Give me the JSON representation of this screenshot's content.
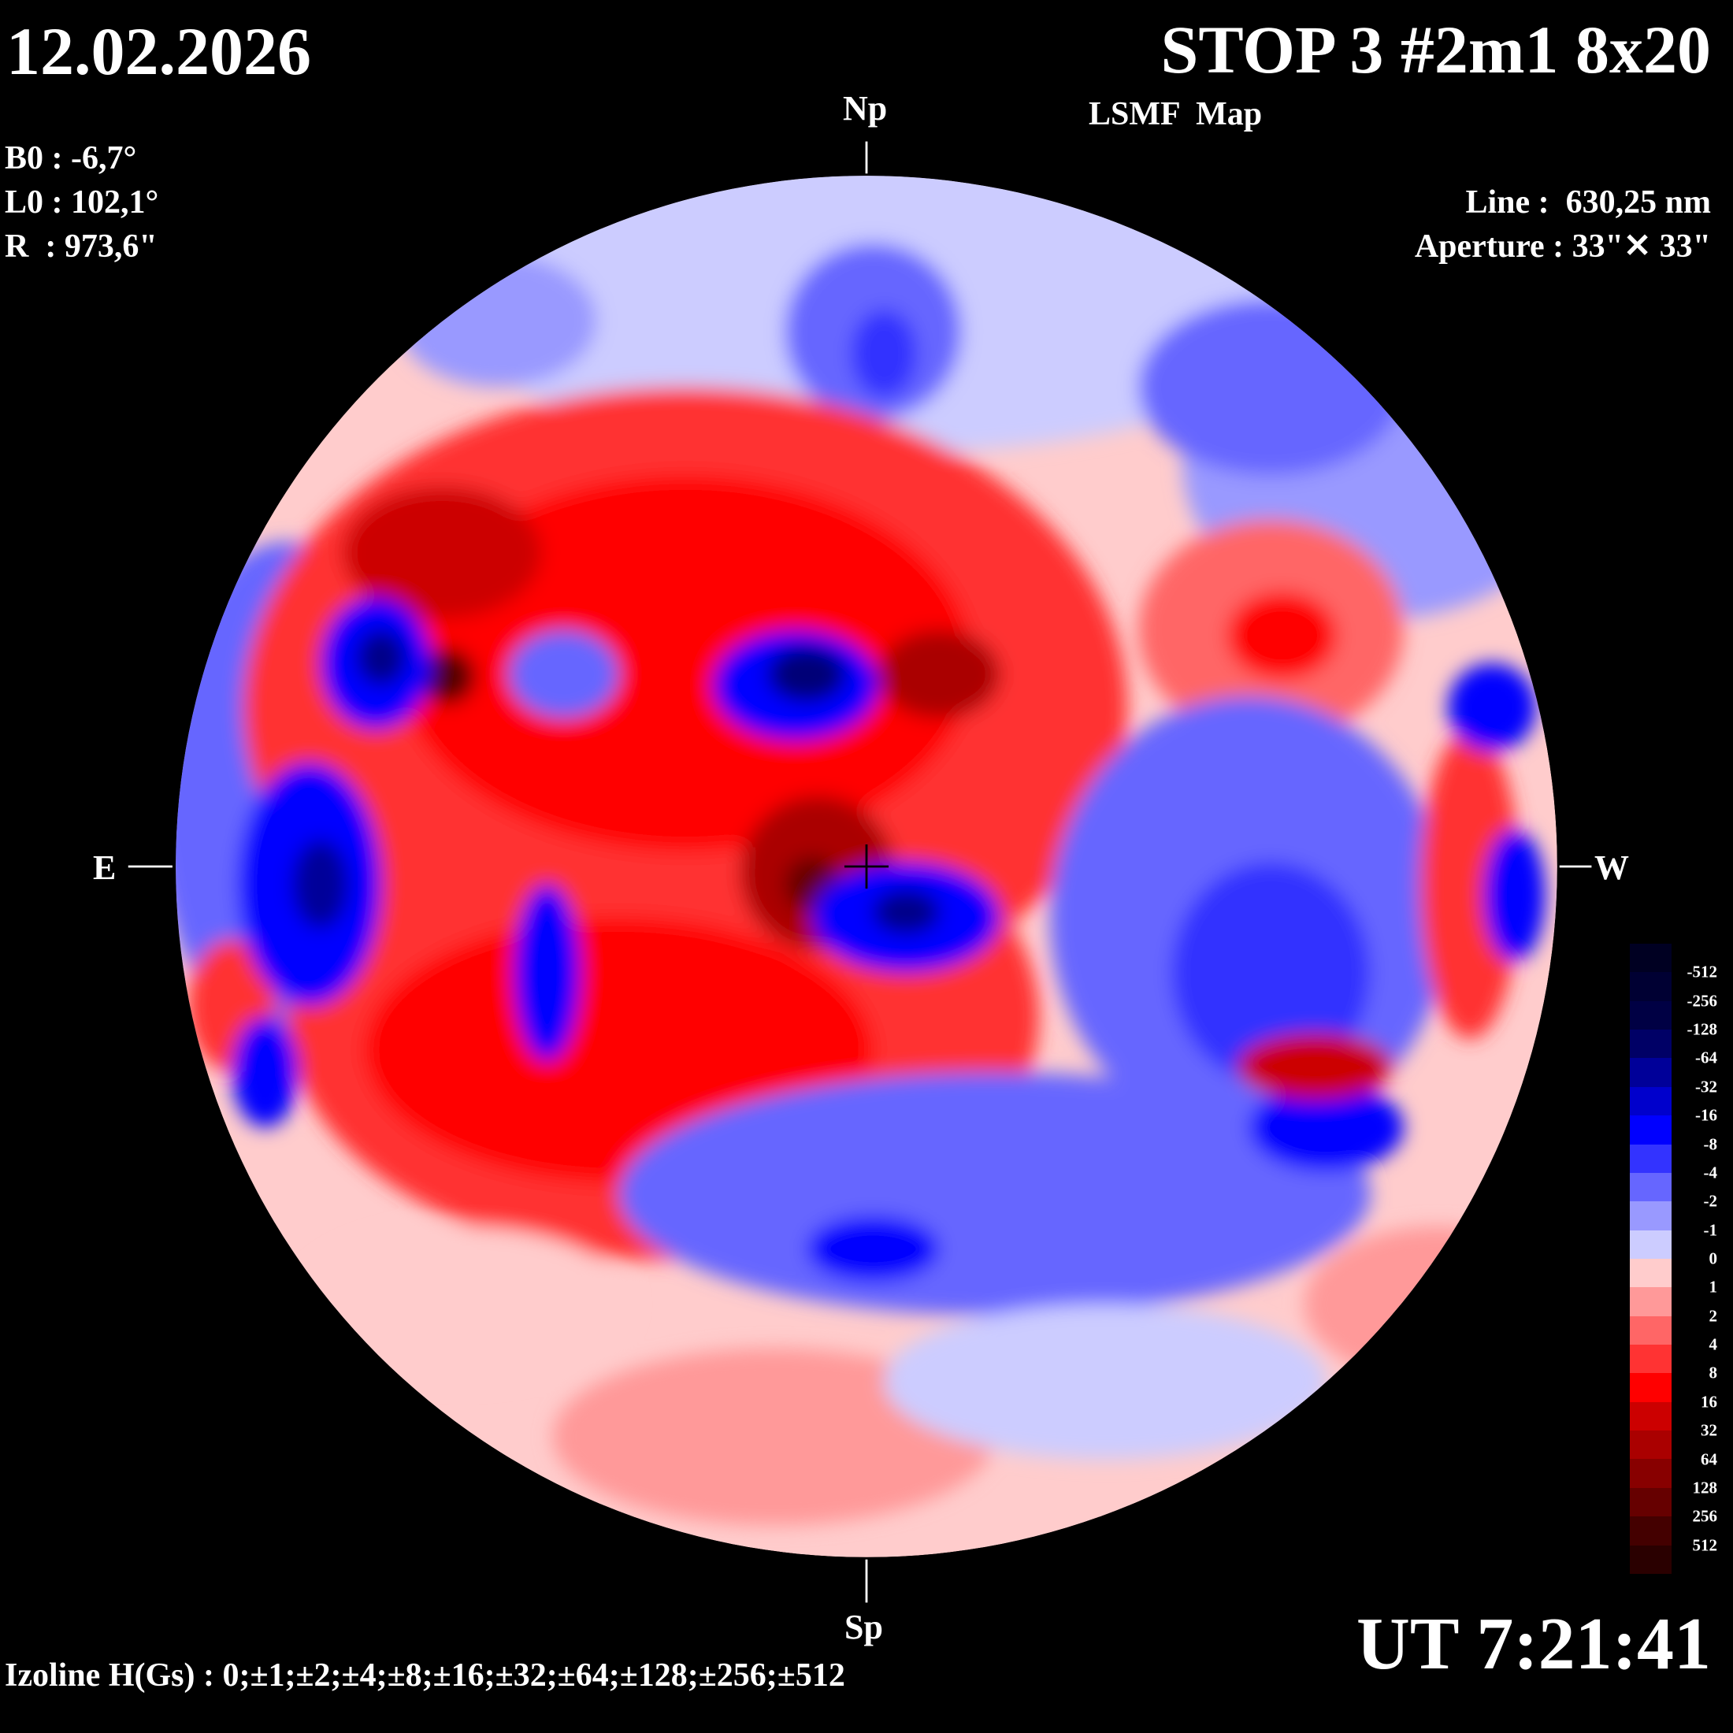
{
  "header": {
    "date": "12.02.2026",
    "title": "STOP 3 #2m1 8x20",
    "subtitle": "LSMF  Map"
  },
  "params": {
    "b0": "B0 : -6,7°",
    "l0": "L0 : 102,1°",
    "r": "R  : 973,6\"",
    "line": "Line :  630,25 nm",
    "aperture": "Aperture : 33\"✕ 33\""
  },
  "directions": {
    "north": "Np",
    "south": "Sp",
    "east": "E",
    "west": "W"
  },
  "footer": {
    "time": "UT 7:21:41",
    "izoline": "Izoline H(Gs) : 0;±1;±2;±4;±8;±16;±32;±64;±128;±256;±512"
  },
  "colorbar": {
    "labels": [
      "-512",
      "-256",
      "-128",
      "-64",
      "-32",
      "-16",
      "-8",
      "-4",
      "-2",
      "-1",
      "0",
      "1",
      "2",
      "4",
      "8",
      "16",
      "32",
      "64",
      "128",
      "256",
      "512"
    ],
    "colors": [
      "#000022",
      "#000033",
      "#000044",
      "#000066",
      "#000099",
      "#0000cc",
      "#0000ff",
      "#3333ff",
      "#6666ff",
      "#9999ff",
      "#ccccff",
      "#ffcccc",
      "#ff9999",
      "#ff6666",
      "#ff3333",
      "#ff0000",
      "#cc0000",
      "#aa0000",
      "#880000",
      "#660000",
      "#440000",
      "#2a0000"
    ]
  }
}
